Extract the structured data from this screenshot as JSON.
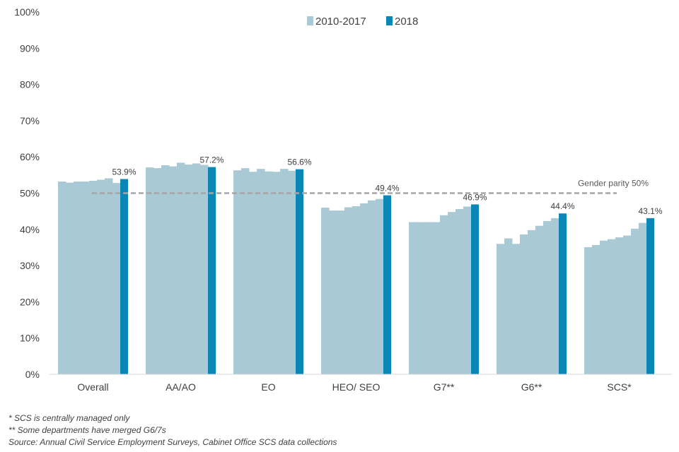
{
  "chart_data": {
    "type": "bar",
    "title": "",
    "xlabel": "",
    "ylabel": "",
    "ylim": [
      0,
      100
    ],
    "y_ticks": [
      "0%",
      "10%",
      "20%",
      "30%",
      "40%",
      "50%",
      "60%",
      "70%",
      "80%",
      "90%",
      "100%"
    ],
    "categories": [
      "Overall",
      "AA/AO",
      "EO",
      "HEO/ SEO",
      "G7**",
      "G6**",
      "SCS*"
    ],
    "series": [
      {
        "name": "2010-2017",
        "color": "#a9c9d4",
        "values": [
          [
            53.2,
            52.9,
            53.2,
            53.2,
            53.4,
            53.7,
            54.1,
            52.8
          ],
          [
            57.1,
            56.9,
            57.7,
            57.4,
            58.4,
            57.9,
            58.2,
            57.8
          ],
          [
            56.3,
            56.9,
            55.9,
            56.7,
            56.0,
            55.9,
            56.7,
            56.2
          ],
          [
            46.0,
            45.2,
            45.2,
            46.1,
            46.4,
            47.2,
            48.0,
            48.4
          ],
          [
            42.0,
            42.0,
            42.0,
            42.0,
            43.9,
            44.8,
            45.6,
            46.3
          ],
          [
            36.0,
            37.5,
            36.0,
            38.6,
            39.8,
            41.0,
            42.3,
            43.1
          ],
          [
            35.1,
            35.7,
            36.9,
            37.3,
            37.8,
            38.3,
            40.2,
            41.8
          ]
        ]
      },
      {
        "name": "2018",
        "color": "#0a87b7",
        "values": [
          53.9,
          57.2,
          56.6,
          49.4,
          46.9,
          44.4,
          43.1
        ],
        "labels": [
          "53.9%",
          "57.2%",
          "56.6%",
          "49.4%",
          "46.9%",
          "44.4%",
          "43.1%"
        ]
      }
    ],
    "reference_line": {
      "label": "Gender parity 50%",
      "value": 50,
      "color": "#a6a6a6"
    },
    "legend": {
      "position": "top-center",
      "items": [
        "2010-2017",
        "2018"
      ]
    },
    "grid": false
  },
  "notes": [
    "* SCS is centrally managed only",
    "** Some departments have merged G6/7s",
    "Source: Annual Civil Service Employment Surveys, Cabinet Office SCS data collections"
  ]
}
